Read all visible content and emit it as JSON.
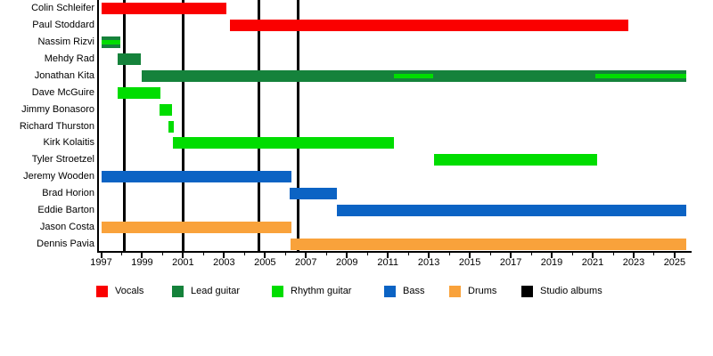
{
  "chart_data": {
    "type": "timeline",
    "description_visible_text_only": "band member timeline gantt chart",
    "x_axis": {
      "first_label_year": 1997,
      "last_label_year": 2025,
      "label_step": 2,
      "minor_tick_step": 1,
      "tick_labels": [
        "1997",
        "1999",
        "2001",
        "2003",
        "2005",
        "2007",
        "2009",
        "2011",
        "2013",
        "2015",
        "2017",
        "2019",
        "2021",
        "2023",
        "2025"
      ]
    },
    "colors": {
      "vocals": "#fa0000",
      "lead_guitar": "#15823b",
      "rhythm_guitar": "#00dd00",
      "bass": "#0b63c4",
      "drums": "#f9a23b",
      "albums": "#000000"
    },
    "legend": [
      {
        "label": "Vocals",
        "color_key": "vocals"
      },
      {
        "label": "Lead guitar",
        "color_key": "lead_guitar"
      },
      {
        "label": "Rhythm guitar",
        "color_key": "rhythm_guitar"
      },
      {
        "label": "Bass",
        "color_key": "bass"
      },
      {
        "label": "Drums",
        "color_key": "drums"
      },
      {
        "label": "Studio albums",
        "color_key": "albums"
      }
    ],
    "members": [
      {
        "name": "Colin Schleifer",
        "role": "vocals",
        "start": 1997.0,
        "end": 2003.1,
        "stripes": []
      },
      {
        "name": "Paul Stoddard",
        "role": "vocals",
        "start": 2003.3,
        "end": 2022.75,
        "stripes": []
      },
      {
        "name": "Nassim Rizvi",
        "role": "lead_guitar",
        "start": 1997.0,
        "end": 1997.95,
        "stripes": [
          {
            "color_key": "rhythm_guitar",
            "start": 1997.0,
            "end": 1997.95
          }
        ]
      },
      {
        "name": "Mehdy Rad",
        "role": "lead_guitar",
        "start": 1997.8,
        "end": 1998.95,
        "stripes": []
      },
      {
        "name": "Jonathan Kita",
        "role": "lead_guitar",
        "start": 1999.0,
        "end": 2025.55,
        "stripes": [
          {
            "color_key": "rhythm_guitar",
            "start": 2011.3,
            "end": 2013.2
          },
          {
            "color_key": "rhythm_guitar",
            "start": 2021.15,
            "end": 2025.55
          }
        ]
      },
      {
        "name": "Dave McGuire",
        "role": "rhythm_guitar",
        "start": 1997.8,
        "end": 1999.9,
        "stripes": []
      },
      {
        "name": "Jimmy Bonasoro",
        "role": "rhythm_guitar",
        "start": 1999.85,
        "end": 2000.45,
        "stripes": []
      },
      {
        "name": "Richard Thurston",
        "role": "rhythm_guitar",
        "start": 2000.3,
        "end": 2000.55,
        "stripes": []
      },
      {
        "name": "Kirk Kolaitis",
        "role": "rhythm_guitar",
        "start": 2000.5,
        "end": 2011.3,
        "stripes": []
      },
      {
        "name": "Tyler Stroetzel",
        "role": "rhythm_guitar",
        "start": 2013.25,
        "end": 2021.2,
        "stripes": []
      },
      {
        "name": "Jeremy Wooden",
        "role": "bass",
        "start": 1997.0,
        "end": 2006.3,
        "stripes": []
      },
      {
        "name": "Brad Horion",
        "role": "bass",
        "start": 2006.2,
        "end": 2008.5,
        "stripes": []
      },
      {
        "name": "Eddie Barton",
        "role": "bass",
        "start": 2008.5,
        "end": 2025.55,
        "stripes": []
      },
      {
        "name": "Jason Costa",
        "role": "drums",
        "start": 1997.0,
        "end": 2006.3,
        "stripes": []
      },
      {
        "name": "Dennis Pavia",
        "role": "drums",
        "start": 2006.25,
        "end": 2025.55,
        "stripes": []
      }
    ],
    "albums": {
      "legend_label": "Studio albums",
      "years": [
        1998.15,
        2001.0,
        2004.7,
        2006.6
      ]
    },
    "layout_hints": {
      "grid": "off",
      "legend_position": "bottom",
      "bars_drawn_over_album_lines": true
    }
  }
}
